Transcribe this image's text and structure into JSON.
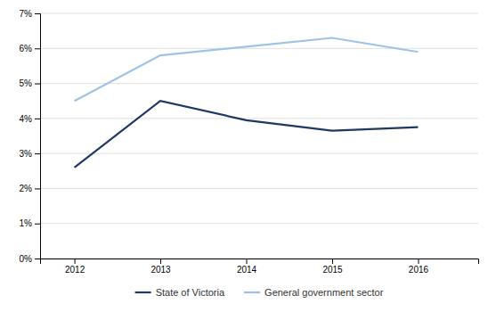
{
  "chart_data": {
    "type": "line",
    "x": [
      2012,
      2013,
      2014,
      2015,
      2016
    ],
    "series": [
      {
        "name": "State of Victoria",
        "color": "#1F3864",
        "values": [
          0.026,
          0.045,
          0.0395,
          0.0365,
          0.0375
        ]
      },
      {
        "name": "General government sector",
        "color": "#9DC3E6",
        "values": [
          0.045,
          0.058,
          0.0605,
          0.063,
          0.059
        ]
      }
    ],
    "xlim": [
      2011.6,
      2016.7
    ],
    "xticks": [
      2012,
      2013,
      2014,
      2015,
      2016
    ],
    "ylim": [
      0.0,
      0.07
    ],
    "yticks": [
      {
        "value": 0.0,
        "label": "0%"
      },
      {
        "value": 0.01,
        "label": "1%"
      },
      {
        "value": 0.02,
        "label": "2%"
      },
      {
        "value": 0.03,
        "label": "3%"
      },
      {
        "value": 0.04,
        "label": "4%"
      },
      {
        "value": 0.05,
        "label": "5%"
      },
      {
        "value": 0.06,
        "label": "6%"
      },
      {
        "value": 0.07,
        "label": "7%"
      }
    ],
    "grid": true,
    "legend": "bottom"
  }
}
